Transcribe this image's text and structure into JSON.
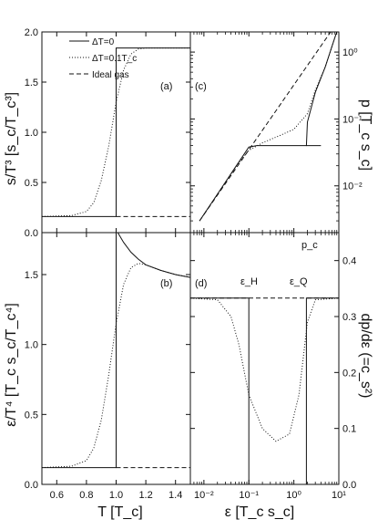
{
  "chart_data": [
    {
      "panel": "(a)",
      "type": "line",
      "ylabel": "s/T³ [s_c/T_c³]",
      "xlim": [
        0.5,
        1.5
      ],
      "ylim": [
        0,
        2
      ],
      "yticks": [
        "0.0",
        "0.5",
        "1.0",
        "1.5",
        "2.0"
      ],
      "legend": {
        "placement": "top-center",
        "entries": [
          "ΔT=0",
          "ΔT=0.1T_c",
          "Ideal gas"
        ]
      },
      "series": [
        {
          "name": "ΔT=0",
          "style": "solid",
          "x": [
            0.5,
            1.0,
            1.0,
            1.5
          ],
          "y": [
            0.16,
            0.16,
            1.84,
            1.84
          ]
        },
        {
          "name": "ΔT=0.1T_c",
          "style": "dotted",
          "x": [
            0.5,
            0.7,
            0.8,
            0.85,
            0.9,
            0.95,
            1.0,
            1.05,
            1.1,
            1.15,
            1.2,
            1.5
          ],
          "y": [
            0.16,
            0.17,
            0.21,
            0.3,
            0.52,
            0.86,
            1.3,
            1.62,
            1.78,
            1.83,
            1.84,
            1.84
          ]
        },
        {
          "name": "Ideal gas",
          "style": "dashed",
          "x": [
            1.0,
            1.5
          ],
          "y": [
            0.16,
            0.16
          ]
        }
      ]
    },
    {
      "panel": "(b)",
      "type": "line",
      "xlabel": "T [T_c]",
      "ylabel": "ε/T⁴ [T_c s_c/T_c⁴]",
      "xlim": [
        0.5,
        1.5
      ],
      "ylim": [
        0,
        1.8
      ],
      "xticks": [
        "0.6",
        "0.8",
        "1.0",
        "1.2",
        "1.4"
      ],
      "yticks": [
        "0.0",
        "0.5",
        "1.0",
        "1.5"
      ],
      "series": [
        {
          "name": "ΔT=0",
          "style": "solid",
          "x": [
            0.5,
            1.0,
            1.0,
            1.05,
            1.1,
            1.15,
            1.2,
            1.3,
            1.4,
            1.5
          ],
          "y": [
            0.12,
            0.12,
            1.82,
            1.73,
            1.66,
            1.61,
            1.57,
            1.53,
            1.5,
            1.48
          ]
        },
        {
          "name": "ΔT=0.1T_c",
          "style": "dotted",
          "x": [
            0.5,
            0.7,
            0.8,
            0.85,
            0.9,
            0.95,
            1.0,
            1.05,
            1.1,
            1.15,
            1.2,
            1.3,
            1.4,
            1.5
          ],
          "y": [
            0.12,
            0.13,
            0.17,
            0.26,
            0.46,
            0.78,
            1.15,
            1.43,
            1.55,
            1.58,
            1.57,
            1.53,
            1.5,
            1.48
          ]
        },
        {
          "name": "Ideal gas",
          "style": "dashed",
          "x": [
            1.0,
            1.5
          ],
          "y": [
            0.12,
            0.12
          ]
        }
      ]
    },
    {
      "panel": "(c)",
      "type": "line",
      "ylabel": "p [T_c s_c]",
      "xscale": "log",
      "yscale": "log",
      "xlim": [
        0.005,
        10
      ],
      "ylim": [
        0.002,
        2
      ],
      "yticks": [
        "10⁻²",
        "10⁻¹",
        "10⁰"
      ],
      "annotations": [
        "p_c"
      ],
      "series": [
        {
          "name": "ΔT=0",
          "style": "solid",
          "x": [
            0.008,
            0.02,
            0.05,
            0.1,
            0.15,
            0.5,
            1.0,
            1.9,
            2.0,
            3,
            5,
            10
          ],
          "y": [
            0.003,
            0.0075,
            0.019,
            0.038,
            0.04,
            0.04,
            0.04,
            0.04,
            0.09,
            0.25,
            0.6,
            2.5
          ]
        },
        {
          "name": "ΔT=0.1T_c",
          "style": "dotted",
          "x": [
            0.008,
            0.02,
            0.05,
            0.1,
            0.2,
            0.5,
            1.0,
            2.0,
            3,
            5,
            10
          ],
          "y": [
            0.003,
            0.0075,
            0.019,
            0.034,
            0.044,
            0.057,
            0.07,
            0.12,
            0.27,
            0.6,
            2.5
          ]
        },
        {
          "name": "Ideal gas",
          "style": "dashed",
          "x": [
            0.008,
            10
          ],
          "y": [
            0.003,
            3.0
          ]
        }
      ]
    },
    {
      "panel": "(d)",
      "type": "line",
      "xlabel": "ε [T_c s_c]",
      "ylabel": "dp/dε (=c_s²)",
      "xscale": "log",
      "xlim": [
        0.005,
        10
      ],
      "ylim": [
        0,
        0.45
      ],
      "xticks": [
        "10⁻²",
        "10⁻¹",
        "10⁰",
        "10¹"
      ],
      "yticks": [
        "0.0",
        "0.1",
        "0.2",
        "0.3",
        "0.4"
      ],
      "annotations": [
        "ε_H",
        "ε_Q"
      ],
      "series": [
        {
          "name": "ΔT=0",
          "style": "solid",
          "x": [
            0.005,
            0.1,
            0.1,
            1.9,
            1.9,
            10
          ],
          "y": [
            0.333,
            0.333,
            0.0,
            0.0,
            0.333,
            0.333
          ]
        },
        {
          "name": "ΔT=0.1T_c",
          "style": "dotted",
          "x": [
            0.005,
            0.02,
            0.04,
            0.06,
            0.1,
            0.2,
            0.4,
            0.8,
            1.3,
            2.0,
            3,
            10
          ],
          "y": [
            0.333,
            0.33,
            0.3,
            0.25,
            0.16,
            0.1,
            0.077,
            0.09,
            0.16,
            0.29,
            0.33,
            0.333
          ]
        },
        {
          "name": "Ideal gas",
          "style": "dashed",
          "x": [
            0.005,
            10
          ],
          "y": [
            0.333,
            0.333
          ]
        }
      ]
    }
  ]
}
